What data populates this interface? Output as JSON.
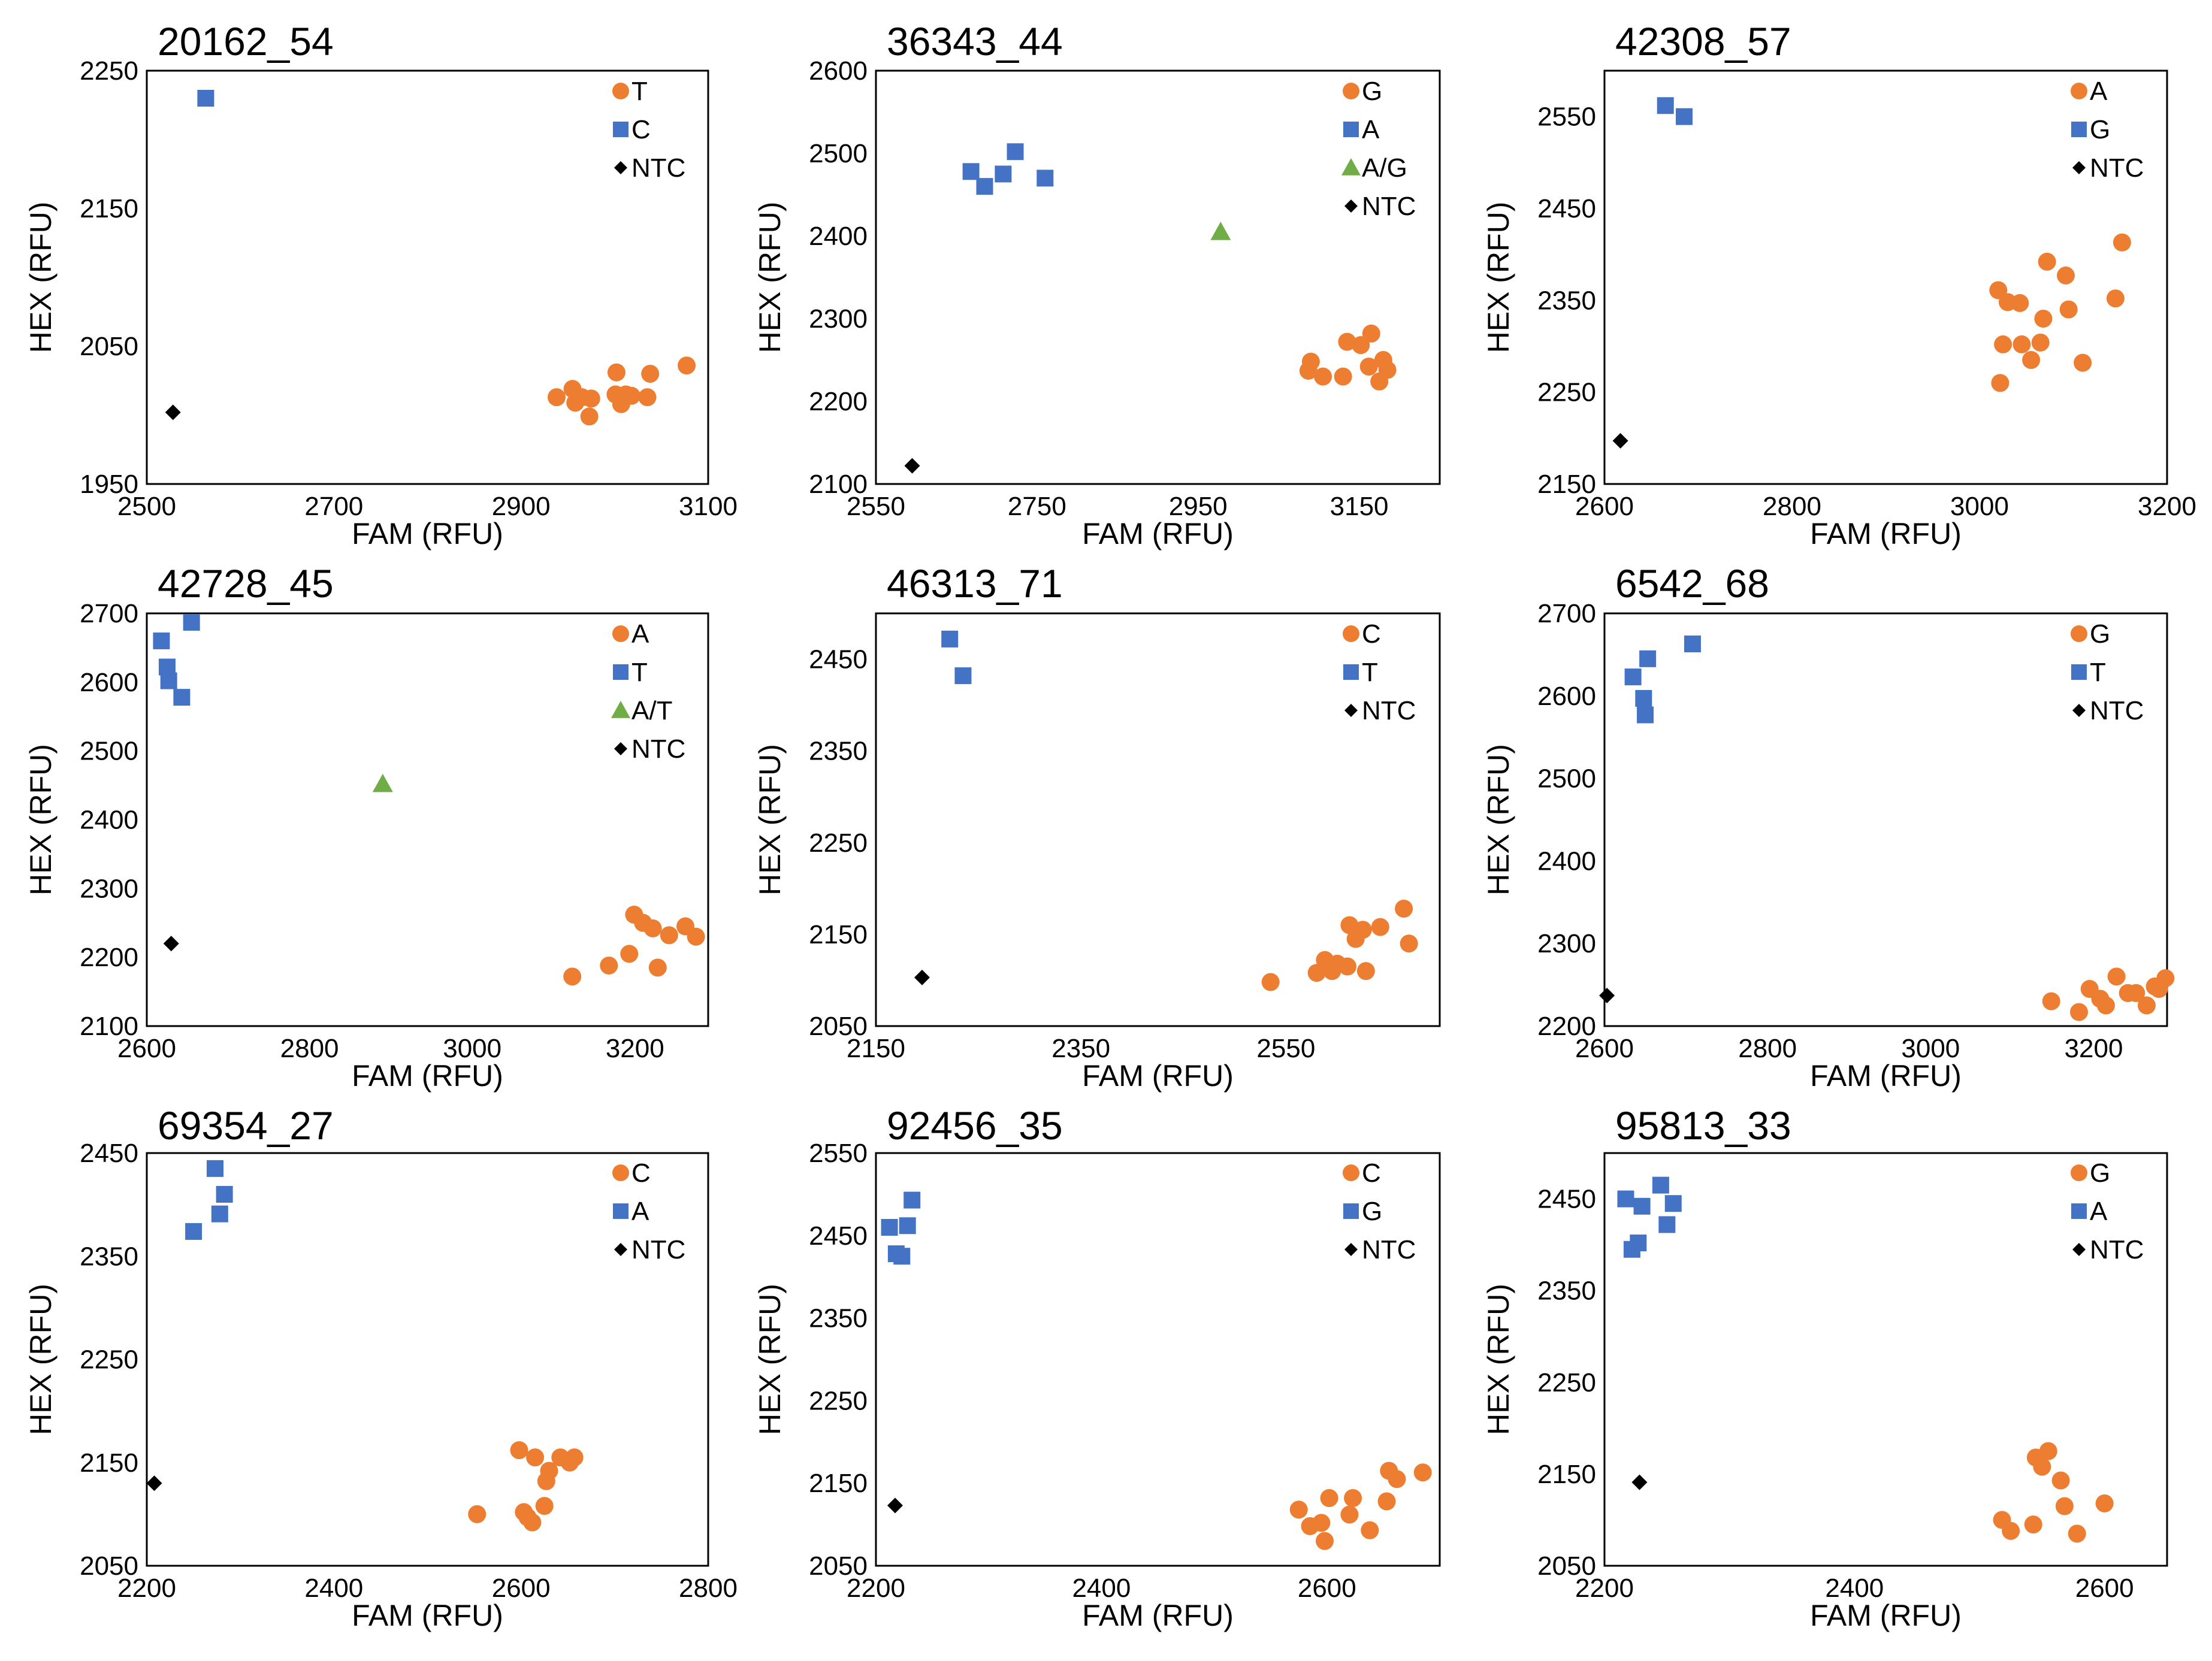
{
  "figure": {
    "type": "scatter-panel-grid"
  },
  "colors": {
    "orange": "#ED7D31",
    "blue": "#4472C4",
    "green": "#70AD47",
    "black": "#000000"
  },
  "chart_data": [
    {
      "type": "scatter",
      "title": "20162_54",
      "xlabel": "FAM (RFU)",
      "ylabel": "HEX (RFU)",
      "xlim": [
        2500,
        3100
      ],
      "ylim": [
        1950,
        2250
      ],
      "xticks": [
        "2500",
        "2700",
        "2900",
        "3100"
      ],
      "yticks": [
        "1950",
        "2050",
        "2150",
        "2250"
      ],
      "series": [
        {
          "name": "T",
          "marker": "circle",
          "color": "#ED7D31",
          "points": [
            [
              2938,
              2013
            ],
            [
              2955,
              2019
            ],
            [
              2958,
              2009
            ],
            [
              2965,
              2013
            ],
            [
              2975,
              2012
            ],
            [
              2973,
              1999
            ],
            [
              3002,
              2031
            ],
            [
              3001,
              2015
            ],
            [
              3007,
              2008
            ],
            [
              3012,
              2015
            ],
            [
              3018,
              2014
            ],
            [
              3035,
              2013
            ],
            [
              3038,
              2030
            ],
            [
              3077,
              2036
            ]
          ]
        },
        {
          "name": "C",
          "marker": "square",
          "color": "#4472C4",
          "points": [
            [
              2563,
              2230
            ]
          ]
        },
        {
          "name": "NTC",
          "marker": "diamond",
          "color": "#000000",
          "points": [
            [
              2528,
              2002
            ]
          ]
        }
      ]
    },
    {
      "type": "scatter",
      "title": "36343_44",
      "xlabel": "FAM (RFU)",
      "ylabel": "HEX (RFU)",
      "xlim": [
        2550,
        3250
      ],
      "ylim": [
        2100,
        2600
      ],
      "xticks": [
        "2550",
        "2750",
        "2950",
        "3150"
      ],
      "yticks": [
        "2100",
        "2200",
        "2300",
        "2400",
        "2500",
        "2600"
      ],
      "series": [
        {
          "name": "G",
          "marker": "circle",
          "color": "#ED7D31",
          "points": [
            [
              3090,
              2248
            ],
            [
              3087,
              2237
            ],
            [
              3105,
              2230
            ],
            [
              3130,
              2230
            ],
            [
              3135,
              2272
            ],
            [
              3152,
              2268
            ],
            [
              3165,
              2282
            ],
            [
              3162,
              2242
            ],
            [
              3175,
              2224
            ],
            [
              3180,
              2250
            ],
            [
              3185,
              2238
            ]
          ]
        },
        {
          "name": "A",
          "marker": "square",
          "color": "#4472C4",
          "points": [
            [
              2668,
              2478
            ],
            [
              2685,
              2460
            ],
            [
              2708,
              2475
            ],
            [
              2723,
              2502
            ],
            [
              2760,
              2470
            ]
          ]
        },
        {
          "name": "A/G",
          "marker": "triangle",
          "color": "#70AD47",
          "points": [
            [
              2978,
              2405
            ]
          ]
        },
        {
          "name": "NTC",
          "marker": "diamond",
          "color": "#000000",
          "points": [
            [
              2595,
              2122
            ]
          ]
        }
      ]
    },
    {
      "type": "scatter",
      "title": "42308_57",
      "xlabel": "FAM (RFU)",
      "ylabel": "HEX (RFU)",
      "xlim": [
        2600,
        3200
      ],
      "ylim": [
        2150,
        2600
      ],
      "xticks": [
        "2600",
        "2800",
        "3000",
        "3200"
      ],
      "yticks": [
        "2150",
        "2250",
        "2350",
        "2450",
        "2550"
      ],
      "series": [
        {
          "name": "A",
          "marker": "circle",
          "color": "#ED7D31",
          "points": [
            [
              3020,
              2361
            ],
            [
              3030,
              2348
            ],
            [
              3025,
              2302
            ],
            [
              3022,
              2260
            ],
            [
              3043,
              2347
            ],
            [
              3045,
              2302
            ],
            [
              3055,
              2285
            ],
            [
              3065,
              2304
            ],
            [
              3068,
              2330
            ],
            [
              3072,
              2392
            ],
            [
              3092,
              2377
            ],
            [
              3095,
              2340
            ],
            [
              3110,
              2282
            ],
            [
              3145,
              2352
            ],
            [
              3152,
              2413
            ]
          ]
        },
        {
          "name": "G",
          "marker": "square",
          "color": "#4472C4",
          "points": [
            [
              2665,
              2562
            ],
            [
              2685,
              2550
            ]
          ]
        },
        {
          "name": "NTC",
          "marker": "diamond",
          "color": "#000000",
          "points": [
            [
              2617,
              2197
            ]
          ]
        }
      ]
    },
    {
      "type": "scatter",
      "title": "42728_45",
      "xlabel": "FAM (RFU)",
      "ylabel": "HEX (RFU)",
      "xlim": [
        2600,
        3290
      ],
      "ylim": [
        2100,
        2700
      ],
      "xticks": [
        "2600",
        "2800",
        "3000",
        "3200"
      ],
      "yticks": [
        "2100",
        "2200",
        "2300",
        "2400",
        "2500",
        "2600",
        "2700"
      ],
      "series": [
        {
          "name": "A",
          "marker": "circle",
          "color": "#ED7D31",
          "points": [
            [
              3123,
              2172
            ],
            [
              3168,
              2188
            ],
            [
              3193,
              2205
            ],
            [
              3199,
              2262
            ],
            [
              3210,
              2250
            ],
            [
              3222,
              2242
            ],
            [
              3228,
              2185
            ],
            [
              3242,
              2232
            ],
            [
              3262,
              2245
            ],
            [
              3275,
              2230
            ]
          ]
        },
        {
          "name": "T",
          "marker": "square",
          "color": "#4472C4",
          "points": [
            [
              2618,
              2660
            ],
            [
              2625,
              2622
            ],
            [
              2627,
              2602
            ],
            [
              2643,
              2578
            ],
            [
              2655,
              2687
            ]
          ]
        },
        {
          "name": "A/T",
          "marker": "triangle",
          "color": "#70AD47",
          "points": [
            [
              2890,
              2452
            ]
          ]
        },
        {
          "name": "NTC",
          "marker": "diamond",
          "color": "#000000",
          "points": [
            [
              2630,
              2220
            ]
          ]
        }
      ]
    },
    {
      "type": "scatter",
      "title": "46313_71",
      "xlabel": "FAM (RFU)",
      "ylabel": "HEX (RFU)",
      "xlim": [
        2150,
        2700
      ],
      "ylim": [
        2050,
        2500
      ],
      "xticks": [
        "2150",
        "2350",
        "2550"
      ],
      "yticks": [
        "2050",
        "2150",
        "2250",
        "2350",
        "2450"
      ],
      "series": [
        {
          "name": "C",
          "marker": "circle",
          "color": "#ED7D31",
          "points": [
            [
              2535,
              2098
            ],
            [
              2580,
              2108
            ],
            [
              2588,
              2122
            ],
            [
              2595,
              2110
            ],
            [
              2600,
              2118
            ],
            [
              2610,
              2115
            ],
            [
              2612,
              2160
            ],
            [
              2618,
              2145
            ],
            [
              2625,
              2155
            ],
            [
              2628,
              2110
            ],
            [
              2642,
              2158
            ],
            [
              2665,
              2178
            ],
            [
              2670,
              2140
            ]
          ]
        },
        {
          "name": "T",
          "marker": "square",
          "color": "#4472C4",
          "points": [
            [
              2222,
              2472
            ],
            [
              2235,
              2432
            ]
          ]
        },
        {
          "name": "NTC",
          "marker": "diamond",
          "color": "#000000",
          "points": [
            [
              2195,
              2103
            ]
          ]
        }
      ]
    },
    {
      "type": "scatter",
      "title": "6542_68",
      "xlabel": "FAM (RFU)",
      "ylabel": "HEX (RFU)",
      "xlim": [
        2600,
        3290
      ],
      "ylim": [
        2200,
        2700
      ],
      "xticks": [
        "2600",
        "2800",
        "3000",
        "3200"
      ],
      "yticks": [
        "2200",
        "2300",
        "2400",
        "2500",
        "2600",
        "2700"
      ],
      "series": [
        {
          "name": "G",
          "marker": "circle",
          "color": "#ED7D31",
          "points": [
            [
              3148,
              2230
            ],
            [
              3182,
              2217
            ],
            [
              3195,
              2245
            ],
            [
              3208,
              2233
            ],
            [
              3215,
              2225
            ],
            [
              3228,
              2260
            ],
            [
              3242,
              2240
            ],
            [
              3252,
              2240
            ],
            [
              3265,
              2225
            ],
            [
              3275,
              2248
            ],
            [
              3280,
              2245
            ],
            [
              3288,
              2258
            ]
          ]
        },
        {
          "name": "T",
          "marker": "square",
          "color": "#4472C4",
          "points": [
            [
              2635,
              2623
            ],
            [
              2648,
              2597
            ],
            [
              2650,
              2577
            ],
            [
              2653,
              2645
            ],
            [
              2708,
              2663
            ]
          ]
        },
        {
          "name": "NTC",
          "marker": "diamond",
          "color": "#000000",
          "points": [
            [
              2603,
              2237
            ]
          ]
        }
      ]
    },
    {
      "type": "scatter",
      "title": "69354_27",
      "xlabel": "FAM (RFU)",
      "ylabel": "HEX (RFU)",
      "xlim": [
        2200,
        2800
      ],
      "ylim": [
        2050,
        2450
      ],
      "xticks": [
        "2200",
        "2400",
        "2600",
        "2800"
      ],
      "yticks": [
        "2050",
        "2150",
        "2250",
        "2350",
        "2450"
      ],
      "series": [
        {
          "name": "C",
          "marker": "circle",
          "color": "#ED7D31",
          "points": [
            [
              2553,
              2100
            ],
            [
              2598,
              2162
            ],
            [
              2603,
              2102
            ],
            [
              2607,
              2097
            ],
            [
              2612,
              2092
            ],
            [
              2615,
              2155
            ],
            [
              2625,
              2108
            ],
            [
              2627,
              2132
            ],
            [
              2630,
              2142
            ],
            [
              2642,
              2155
            ],
            [
              2652,
              2150
            ],
            [
              2657,
              2155
            ]
          ]
        },
        {
          "name": "A",
          "marker": "square",
          "color": "#4472C4",
          "points": [
            [
              2250,
              2374
            ],
            [
              2273,
              2435
            ],
            [
              2278,
              2391
            ],
            [
              2283,
              2410
            ]
          ]
        },
        {
          "name": "NTC",
          "marker": "diamond",
          "color": "#000000",
          "points": [
            [
              2208,
              2130
            ]
          ]
        }
      ]
    },
    {
      "type": "scatter",
      "title": "92456_35",
      "xlabel": "FAM (RFU)",
      "ylabel": "HEX (RFU)",
      "xlim": [
        2200,
        2700
      ],
      "ylim": [
        2050,
        2550
      ],
      "xticks": [
        "2200",
        "2400",
        "2600"
      ],
      "yticks": [
        "2050",
        "2150",
        "2250",
        "2350",
        "2450",
        "2550"
      ],
      "series": [
        {
          "name": "C",
          "marker": "circle",
          "color": "#ED7D31",
          "points": [
            [
              2575,
              2118
            ],
            [
              2585,
              2098
            ],
            [
              2595,
              2102
            ],
            [
              2598,
              2080
            ],
            [
              2602,
              2132
            ],
            [
              2620,
              2112
            ],
            [
              2623,
              2132
            ],
            [
              2638,
              2093
            ],
            [
              2653,
              2128
            ],
            [
              2655,
              2165
            ],
            [
              2662,
              2155
            ],
            [
              2685,
              2163
            ]
          ]
        },
        {
          "name": "G",
          "marker": "square",
          "color": "#4472C4",
          "points": [
            [
              2212,
              2460
            ],
            [
              2218,
              2428
            ],
            [
              2223,
              2425
            ],
            [
              2228,
              2462
            ],
            [
              2232,
              2493
            ]
          ]
        },
        {
          "name": "NTC",
          "marker": "diamond",
          "color": "#000000",
          "points": [
            [
              2217,
              2123
            ]
          ]
        }
      ]
    },
    {
      "type": "scatter",
      "title": "95813_33",
      "xlabel": "FAM (RFU)",
      "ylabel": "HEX (RFU)",
      "xlim": [
        2200,
        2650
      ],
      "ylim": [
        2050,
        2500
      ],
      "xticks": [
        "2200",
        "2400",
        "2600"
      ],
      "yticks": [
        "2050",
        "2150",
        "2250",
        "2350",
        "2450"
      ],
      "series": [
        {
          "name": "G",
          "marker": "circle",
          "color": "#ED7D31",
          "points": [
            [
              2518,
              2100
            ],
            [
              2525,
              2088
            ],
            [
              2543,
              2095
            ],
            [
              2545,
              2168
            ],
            [
              2550,
              2158
            ],
            [
              2555,
              2175
            ],
            [
              2565,
              2143
            ],
            [
              2568,
              2115
            ],
            [
              2578,
              2085
            ],
            [
              2600,
              2118
            ]
          ]
        },
        {
          "name": "A",
          "marker": "square",
          "color": "#4472C4",
          "points": [
            [
              2217,
              2450
            ],
            [
              2222,
              2395
            ],
            [
              2227,
              2402
            ],
            [
              2230,
              2442
            ],
            [
              2245,
              2465
            ],
            [
              2250,
              2422
            ],
            [
              2255,
              2445
            ]
          ]
        },
        {
          "name": "NTC",
          "marker": "diamond",
          "color": "#000000",
          "points": [
            [
              2228,
              2141
            ]
          ]
        }
      ]
    }
  ]
}
